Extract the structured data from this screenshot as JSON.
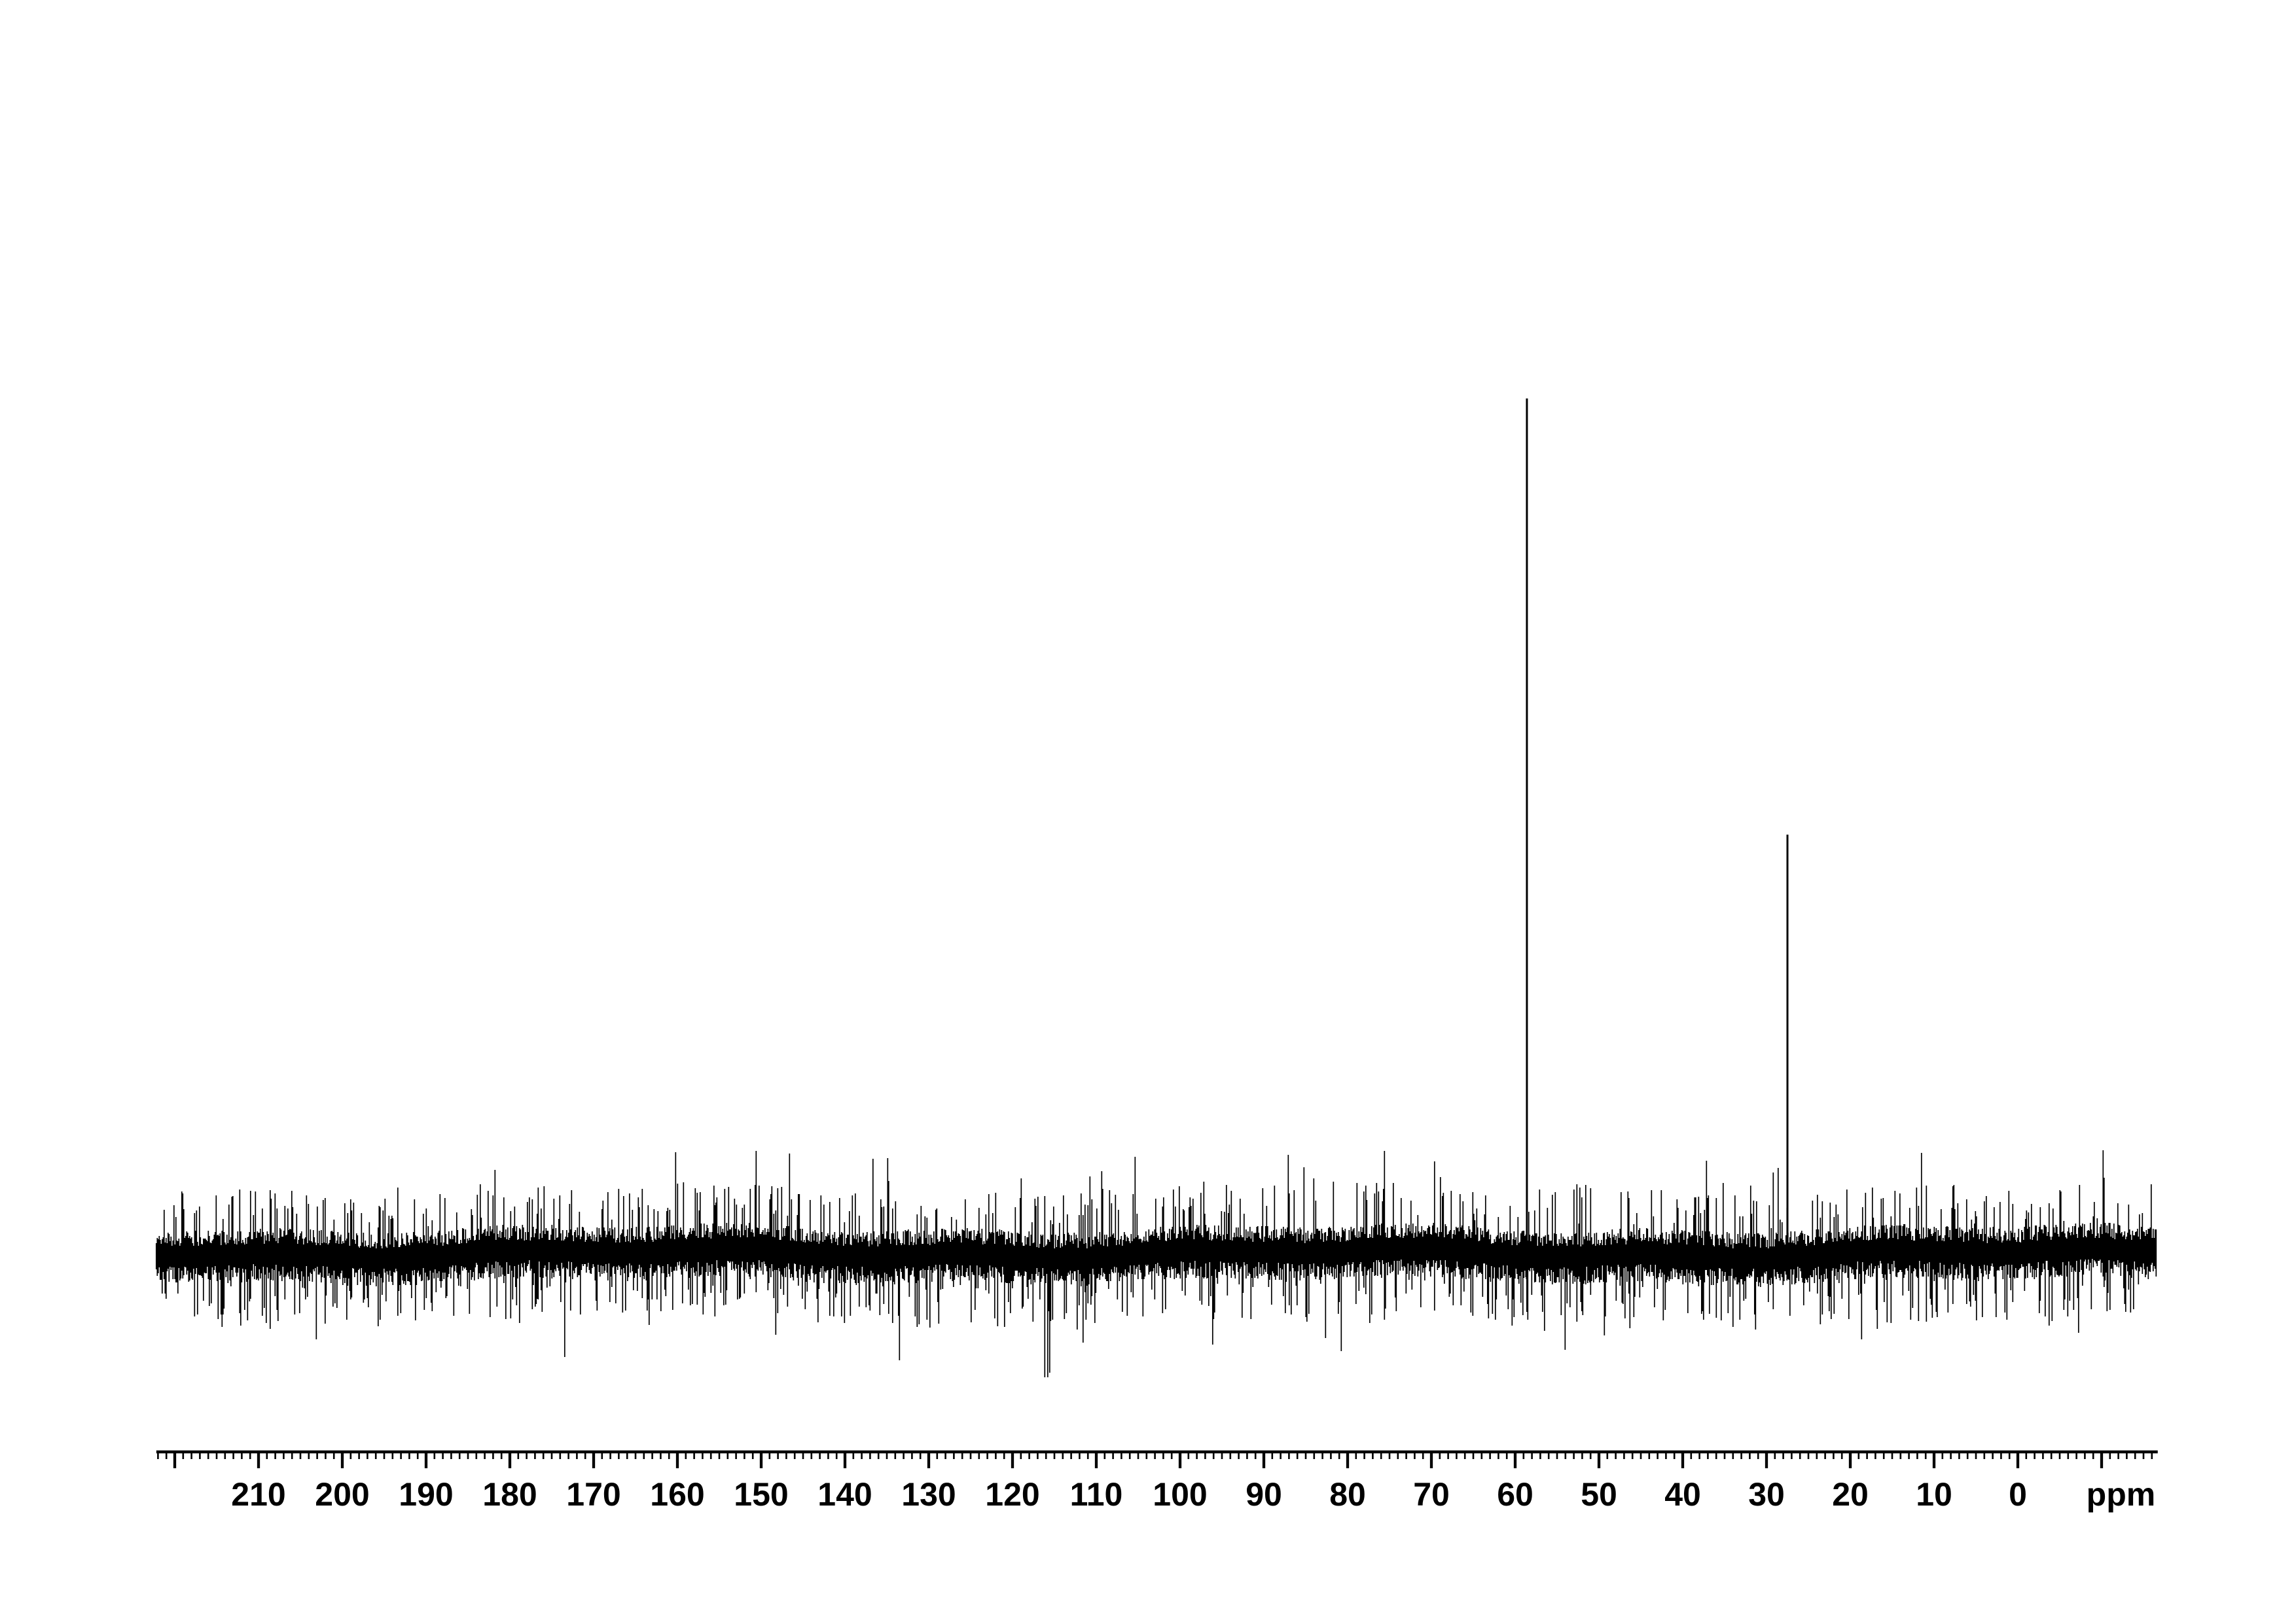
{
  "figure": {
    "background_color": "#ffffff",
    "ink_color": "#000000",
    "description": "NMR spectrum trace with noisy baseline and two sharp peaks over a ppm ruler axis"
  },
  "chart_data": {
    "type": "line",
    "subtype": "nmr-spectrum",
    "title": "",
    "xlabel": "ppm",
    "ylabel": "",
    "grid": false,
    "legend": false,
    "x_axis": {
      "unit_label": "ppm",
      "range_left_ppm": 222.2,
      "range_right_ppm": -16.7,
      "direction": "decreasing-left-to-right",
      "major_tick_interval_ppm": 10,
      "minor_tick_interval_ppm": 1,
      "first_major_tick_ppm": 220,
      "last_major_tick_ppm": -10,
      "tick_labels": [
        "210",
        "200",
        "190",
        "180",
        "170",
        "160",
        "150",
        "140",
        "130",
        "120",
        "110",
        "100",
        "90",
        "80",
        "70",
        "60",
        "50",
        "40",
        "30",
        "20",
        "10",
        "0"
      ]
    },
    "series": [
      {
        "name": "spectrum-trace",
        "baseline": "dense random noise band spanning full axis width, mean intensity ~0",
        "peaks": [
          {
            "ppm": 58.6,
            "relative_intensity": 1.0
          },
          {
            "ppm": 27.5,
            "relative_intensity": 0.49
          }
        ]
      }
    ]
  }
}
